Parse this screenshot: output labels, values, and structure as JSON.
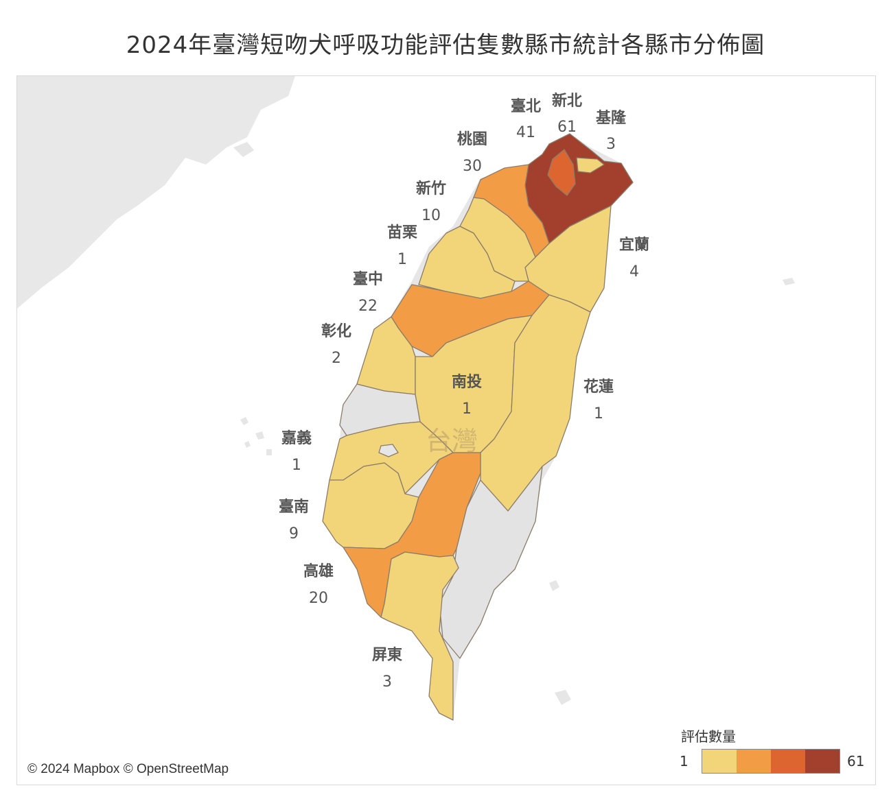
{
  "title": "2024年臺灣短吻犬呼吸功能評估隻數縣市統計各縣市分佈圖",
  "attribution": "© 2024 Mapbox © OpenStreetMap",
  "basemap_label": "台灣",
  "legend": {
    "title": "評估數量",
    "min": "1",
    "max": "61",
    "colors": [
      "#f2d479",
      "#f29d46",
      "#dd6630",
      "#a3402d"
    ]
  },
  "colors": {
    "ocean": "#ffffff",
    "land_other": "#e6e6e6",
    "border": "#8a7c6a"
  },
  "counties": [
    {
      "name": "臺北",
      "value": "41"
    },
    {
      "name": "新北",
      "value": "61"
    },
    {
      "name": "基隆",
      "value": "3"
    },
    {
      "name": "桃園",
      "value": "30"
    },
    {
      "name": "新竹",
      "value": "10"
    },
    {
      "name": "苗栗",
      "value": "1"
    },
    {
      "name": "宜蘭",
      "value": "4"
    },
    {
      "name": "臺中",
      "value": "22"
    },
    {
      "name": "彰化",
      "value": "2"
    },
    {
      "name": "南投",
      "value": "1"
    },
    {
      "name": "花蓮",
      "value": "1"
    },
    {
      "name": "嘉義",
      "value": "1"
    },
    {
      "name": "臺南",
      "value": "9"
    },
    {
      "name": "高雄",
      "value": "20"
    },
    {
      "name": "屏東",
      "value": "3"
    }
  ]
}
